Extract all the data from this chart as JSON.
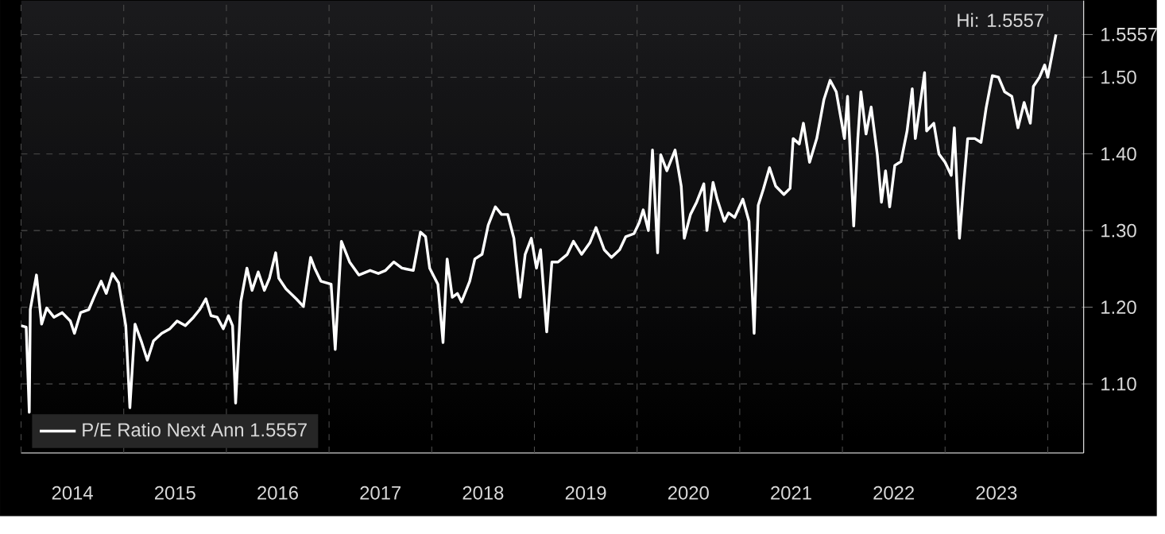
{
  "chart_data": {
    "type": "line",
    "legend": "bottom left",
    "grid": true,
    "xlim": [
      2014.0,
      2024.35
    ],
    "ylim": [
      1.01,
      1.6
    ],
    "xticks": [
      {
        "value": 2014,
        "label": null
      },
      {
        "value": 2015,
        "label": null
      },
      {
        "value": 2016,
        "label": null
      },
      {
        "value": 2017,
        "label": null
      },
      {
        "value": 2018,
        "label": null
      },
      {
        "value": 2019,
        "label": null
      },
      {
        "value": 2020,
        "label": null
      },
      {
        "value": 2021,
        "label": null
      },
      {
        "value": 2022,
        "label": null
      },
      {
        "value": 2023,
        "label": null
      },
      {
        "value": 2024,
        "label": null
      },
      {
        "value": 2014.5,
        "label": "2014"
      },
      {
        "value": 2015.5,
        "label": "2015"
      },
      {
        "value": 2016.5,
        "label": "2016"
      },
      {
        "value": 2017.5,
        "label": "2017"
      },
      {
        "value": 2018.5,
        "label": "2018"
      },
      {
        "value": 2019.5,
        "label": "2019"
      },
      {
        "value": 2020.5,
        "label": "2020"
      },
      {
        "value": 2021.5,
        "label": "2021"
      },
      {
        "value": 2022.5,
        "label": "2022"
      },
      {
        "value": 2023.5,
        "label": "2023"
      }
    ],
    "yticks": [
      {
        "value": 1.1,
        "label": "1.10"
      },
      {
        "value": 1.2,
        "label": "1.20"
      },
      {
        "value": 1.3,
        "label": "1.30"
      },
      {
        "value": 1.4,
        "label": "1.40"
      },
      {
        "value": 1.5,
        "label": "1.50"
      },
      {
        "value": 1.5557,
        "label": "1.5557"
      }
    ],
    "annotations": [
      {
        "text": "Hi: 1.5557",
        "x": 2024.08,
        "y": 1.5557
      }
    ],
    "series": [
      {
        "name": "P/E Ratio Next Ann 1.5557",
        "color": "#ffffff",
        "x": [
          2014.0,
          2014.05,
          2014.08,
          2014.09,
          2014.15,
          2014.2,
          2014.25,
          2014.32,
          2014.4,
          2014.48,
          2014.52,
          2014.58,
          2014.66,
          2014.71,
          2014.78,
          2014.83,
          2014.89,
          2014.95,
          2015.02,
          2015.06,
          2015.11,
          2015.17,
          2015.23,
          2015.29,
          2015.37,
          2015.45,
          2015.52,
          2015.6,
          2015.68,
          2015.74,
          2015.8,
          2015.85,
          2015.91,
          2015.97,
          2016.02,
          2016.06,
          2016.09,
          2016.14,
          2016.2,
          2016.25,
          2016.31,
          2016.37,
          2016.42,
          2016.48,
          2016.51,
          2016.58,
          2016.68,
          2016.75,
          2016.82,
          2016.86,
          2016.92,
          2017.02,
          2017.06,
          2017.12,
          2017.2,
          2017.29,
          2017.4,
          2017.48,
          2017.55,
          2017.63,
          2017.71,
          2017.82,
          2017.89,
          2017.94,
          2017.98,
          2018.06,
          2018.11,
          2018.15,
          2018.2,
          2018.25,
          2018.29,
          2018.37,
          2018.42,
          2018.49,
          2018.55,
          2018.62,
          2018.68,
          2018.74,
          2018.8,
          2018.86,
          2018.91,
          2018.97,
          2019.02,
          2019.06,
          2019.12,
          2019.17,
          2019.23,
          2019.32,
          2019.38,
          2019.46,
          2019.54,
          2019.6,
          2019.68,
          2019.75,
          2019.83,
          2019.89,
          2019.97,
          2020.02,
          2020.06,
          2020.11,
          2020.15,
          2020.2,
          2020.23,
          2020.29,
          2020.37,
          2020.43,
          2020.46,
          2020.52,
          2020.58,
          2020.65,
          2020.68,
          2020.74,
          2020.78,
          2020.85,
          2020.89,
          2020.95,
          2021.03,
          2021.09,
          2021.14,
          2021.18,
          2021.23,
          2021.29,
          2021.35,
          2021.43,
          2021.49,
          2021.52,
          2021.58,
          2021.62,
          2021.68,
          2021.75,
          2021.82,
          2021.88,
          2021.94,
          2022.02,
          2022.05,
          2022.11,
          2022.15,
          2022.18,
          2022.23,
          2022.28,
          2022.34,
          2022.38,
          2022.42,
          2022.46,
          2022.51,
          2022.57,
          2022.63,
          2022.68,
          2022.71,
          2022.8,
          2022.82,
          2022.89,
          2022.94,
          2023.0,
          2023.06,
          2023.09,
          2023.14,
          2023.18,
          2023.22,
          2023.29,
          2023.35,
          2023.4,
          2023.46,
          2023.52,
          2023.58,
          2023.65,
          2023.71,
          2023.77,
          2023.83,
          2023.86,
          2023.92,
          2023.97,
          2024.0,
          2024.08
        ],
        "values": [
          1.176,
          1.174,
          1.063,
          1.197,
          1.242,
          1.178,
          1.199,
          1.187,
          1.193,
          1.182,
          1.166,
          1.193,
          1.197,
          1.213,
          1.234,
          1.218,
          1.244,
          1.232,
          1.176,
          1.069,
          1.178,
          1.156,
          1.131,
          1.156,
          1.166,
          1.172,
          1.182,
          1.176,
          1.187,
          1.197,
          1.211,
          1.189,
          1.187,
          1.172,
          1.189,
          1.176,
          1.075,
          1.207,
          1.251,
          1.222,
          1.246,
          1.222,
          1.238,
          1.271,
          1.238,
          1.224,
          1.211,
          1.201,
          1.265,
          1.251,
          1.234,
          1.23,
          1.145,
          1.286,
          1.259,
          1.242,
          1.248,
          1.244,
          1.248,
          1.259,
          1.251,
          1.248,
          1.298,
          1.292,
          1.251,
          1.23,
          1.154,
          1.263,
          1.213,
          1.218,
          1.207,
          1.234,
          1.263,
          1.269,
          1.307,
          1.331,
          1.321,
          1.321,
          1.29,
          1.213,
          1.269,
          1.29,
          1.251,
          1.275,
          1.168,
          1.259,
          1.259,
          1.269,
          1.286,
          1.269,
          1.284,
          1.304,
          1.275,
          1.265,
          1.275,
          1.292,
          1.296,
          1.31,
          1.327,
          1.3,
          1.405,
          1.271,
          1.399,
          1.378,
          1.405,
          1.358,
          1.29,
          1.321,
          1.337,
          1.361,
          1.3,
          1.363,
          1.341,
          1.312,
          1.323,
          1.317,
          1.341,
          1.312,
          1.166,
          1.333,
          1.354,
          1.382,
          1.358,
          1.347,
          1.355,
          1.42,
          1.413,
          1.44,
          1.389,
          1.42,
          1.471,
          1.496,
          1.481,
          1.42,
          1.475,
          1.306,
          1.42,
          1.481,
          1.426,
          1.461,
          1.399,
          1.337,
          1.378,
          1.331,
          1.385,
          1.39,
          1.43,
          1.485,
          1.42,
          1.506,
          1.43,
          1.44,
          1.4,
          1.389,
          1.372,
          1.434,
          1.29,
          1.358,
          1.42,
          1.42,
          1.415,
          1.46,
          1.502,
          1.5,
          1.481,
          1.475,
          1.434,
          1.467,
          1.44,
          1.488,
          1.5,
          1.516,
          1.5,
          1.5557
        ]
      }
    ]
  }
}
